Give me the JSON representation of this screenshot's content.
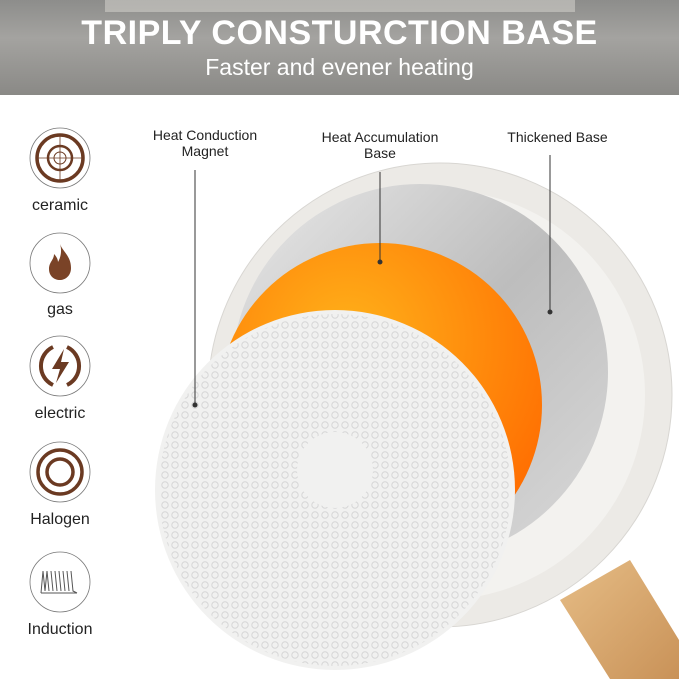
{
  "header": {
    "title": "TRIPLY CONSTURCTION BASE",
    "subtitle": "Faster and evener heating"
  },
  "cooktops": [
    {
      "label": "ceramic",
      "icon": "ceramic-cooktop-icon"
    },
    {
      "label": "gas",
      "icon": "flame-icon"
    },
    {
      "label": "electric",
      "icon": "lightning-icon"
    },
    {
      "label": "Halogen",
      "icon": "halogen-rings-icon"
    },
    {
      "label": "Induction",
      "icon": "induction-coil-icon"
    }
  ],
  "callouts": {
    "magnet": "Heat Conduction\nMagnet",
    "accumulation": "Heat Accumulation\nBase",
    "thickened": "Thickened Base"
  },
  "colors": {
    "brown": "#6b3a22",
    "orange": "#ff8a00",
    "wood": "#d9ab72"
  }
}
